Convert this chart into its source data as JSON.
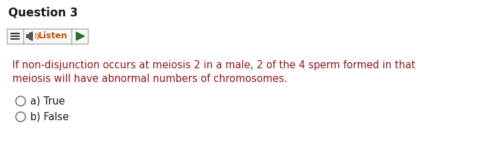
{
  "title": "Question 3",
  "title_fontsize": 12,
  "title_color": "#1a1a1a",
  "body_text_line1": "If non-disjunction occurs at meiosis 2 in a male, 2 of the 4 sperm formed in that",
  "body_text_line2": "meiosis will have abnormal numbers of chromosomes.",
  "body_text_color": "#8B1A1A",
  "body_fontsize": 10.5,
  "option_a": "a) True",
  "option_b": "b) False",
  "option_fontsize": 10.5,
  "option_color": "#1a1a1a",
  "background_color": "#ffffff",
  "listen_box_border": "#aaaaaa",
  "listen_text": "Listen",
  "listen_text_color": "#c85000",
  "listen_fontsize": 9,
  "play_color": "#2e6b2e",
  "hamburger_color": "#333333",
  "speaker_color": "#444444"
}
